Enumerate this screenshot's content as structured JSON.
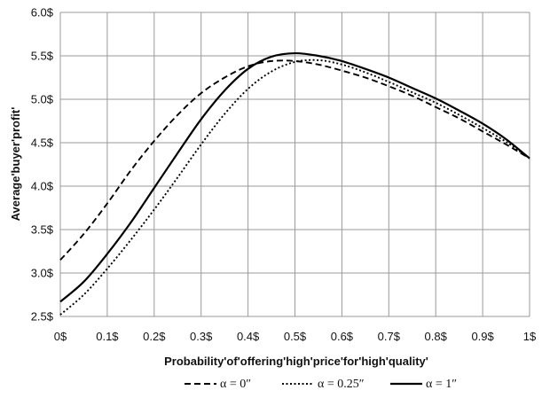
{
  "chart_data": {
    "type": "line",
    "title": "",
    "xlabel": "Probability'of'offering'high'price'for'high'quality'",
    "ylabel": "Average'buyer'profit'",
    "xlim": [
      0,
      1
    ],
    "ylim": [
      2.5,
      6.0
    ],
    "grid": true,
    "legend_position": "bottom",
    "x_ticks": [
      0,
      0.1,
      0.2,
      0.3,
      0.4,
      0.5,
      0.6,
      0.7,
      0.8,
      0.9,
      1
    ],
    "x_tick_labels": [
      "0$",
      "0.1$",
      "0.2$",
      "0.3$",
      "0.4$",
      "0.5$",
      "0.6$",
      "0.7$",
      "0.8$",
      "0.9$",
      "1$"
    ],
    "y_ticks": [
      2.5,
      3.0,
      3.5,
      4.0,
      4.5,
      5.0,
      5.5,
      6.0
    ],
    "y_tick_labels": [
      "2.5$",
      "3.0$",
      "3.5$",
      "4.0$",
      "4.5$",
      "5.0$",
      "5.5$",
      "6.0$"
    ],
    "x": [
      0,
      0.05,
      0.1,
      0.15,
      0.2,
      0.25,
      0.3,
      0.35,
      0.4,
      0.45,
      0.5,
      0.55,
      0.6,
      0.65,
      0.7,
      0.75,
      0.8,
      0.85,
      0.9,
      0.95,
      1.0
    ],
    "series": [
      {
        "name": "α = 0″",
        "style": "dashed",
        "values": [
          3.15,
          3.45,
          3.8,
          4.18,
          4.52,
          4.82,
          5.07,
          5.25,
          5.38,
          5.44,
          5.44,
          5.4,
          5.33,
          5.25,
          5.15,
          5.04,
          4.91,
          4.78,
          4.63,
          4.48,
          4.32
        ]
      },
      {
        "name": "α = 0.25″",
        "style": "dotted",
        "values": [
          2.52,
          2.75,
          3.05,
          3.38,
          3.73,
          4.1,
          4.48,
          4.83,
          5.12,
          5.32,
          5.43,
          5.45,
          5.4,
          5.31,
          5.2,
          5.08,
          4.96,
          4.82,
          4.67,
          4.51,
          4.32
        ]
      },
      {
        "name": "α = 1″",
        "style": "solid",
        "values": [
          2.67,
          2.9,
          3.22,
          3.58,
          3.98,
          4.38,
          4.77,
          5.1,
          5.35,
          5.49,
          5.53,
          5.5,
          5.44,
          5.35,
          5.25,
          5.13,
          5.01,
          4.87,
          4.72,
          4.54,
          4.32
        ]
      }
    ]
  }
}
